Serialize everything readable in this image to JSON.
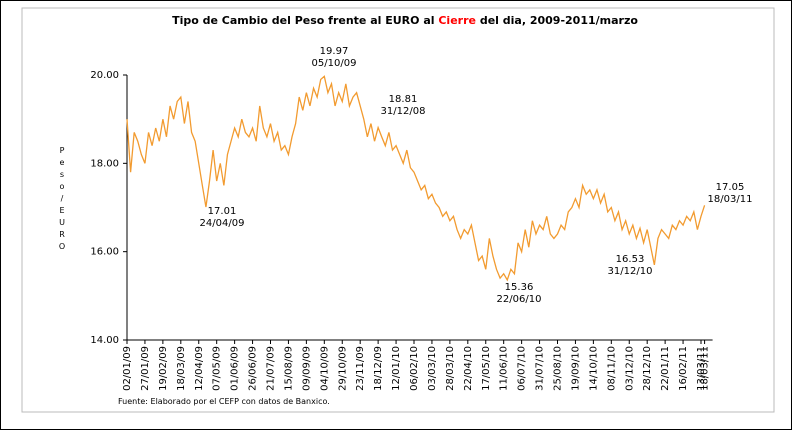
{
  "chart_data": {
    "type": "line",
    "title_parts": [
      "Tipo de Cambio del Peso frente al EURO al ",
      "Cierre",
      " del dia, 2009-2011/marzo"
    ],
    "title_colors": [
      "#000000",
      "#ff0000",
      "#000000"
    ],
    "ylabel": "Peso/EURO",
    "source": "Fuente: Elaborado por el CEFP con datos de Banxico.",
    "ylim": [
      14,
      20
    ],
    "yticks": [
      {
        "value": 14,
        "label": "14.00"
      },
      {
        "value": 16,
        "label": "16.00"
      },
      {
        "value": 18,
        "label": "18.00"
      },
      {
        "value": 20,
        "label": "20.00"
      }
    ],
    "categories": [
      "02/01/09",
      null,
      null,
      null,
      null,
      "27/01/09",
      null,
      null,
      null,
      null,
      "19/02/09",
      null,
      null,
      null,
      null,
      "18/03/09",
      null,
      null,
      null,
      null,
      "12/04/09",
      null,
      null,
      null,
      null,
      "07/05/09",
      null,
      null,
      null,
      null,
      "01/06/09",
      null,
      null,
      null,
      null,
      "26/06/09",
      null,
      null,
      null,
      null,
      "21/07/09",
      null,
      null,
      null,
      null,
      "15/08/09",
      null,
      null,
      null,
      null,
      "09/09/09",
      null,
      null,
      null,
      null,
      "04/10/09",
      null,
      null,
      null,
      null,
      "29/10/09",
      null,
      null,
      null,
      null,
      "23/11/09",
      null,
      null,
      null,
      null,
      "18/12/09",
      null,
      null,
      null,
      null,
      "12/01/10",
      null,
      null,
      null,
      null,
      "06/02/10",
      null,
      null,
      null,
      null,
      "03/03/10",
      null,
      null,
      null,
      null,
      "28/03/10",
      null,
      null,
      null,
      null,
      "22/04/10",
      null,
      null,
      null,
      null,
      "17/05/10",
      null,
      null,
      null,
      null,
      "11/06/10",
      null,
      null,
      null,
      null,
      "06/07/10",
      null,
      null,
      null,
      null,
      "31/07/10",
      null,
      null,
      null,
      null,
      "25/08/10",
      null,
      null,
      null,
      null,
      "19/09/10",
      null,
      null,
      null,
      null,
      "14/10/10",
      null,
      null,
      null,
      null,
      "08/11/10",
      null,
      null,
      null,
      null,
      "03/12/10",
      null,
      null,
      null,
      null,
      "28/12/10",
      null,
      null,
      null,
      null,
      "22/01/11",
      null,
      null,
      null,
      null,
      "16/02/11",
      null,
      null,
      null,
      null,
      "13/03/11",
      "18/03/11"
    ],
    "series": [
      {
        "name": "Peso/EURO",
        "color": "#f29b30",
        "values": [
          19.0,
          17.8,
          18.7,
          18.5,
          18.2,
          18.0,
          18.7,
          18.4,
          18.8,
          18.5,
          19.0,
          18.6,
          19.3,
          19.0,
          19.4,
          19.5,
          18.9,
          19.4,
          18.7,
          18.5,
          18.0,
          17.5,
          17.01,
          17.6,
          18.3,
          17.6,
          18.0,
          17.5,
          18.2,
          18.5,
          18.8,
          18.6,
          19.0,
          18.7,
          18.6,
          18.8,
          18.5,
          19.3,
          18.8,
          18.6,
          18.9,
          18.5,
          18.7,
          18.3,
          18.4,
          18.2,
          18.6,
          18.9,
          19.5,
          19.2,
          19.6,
          19.3,
          19.7,
          19.5,
          19.9,
          19.97,
          19.6,
          19.8,
          19.3,
          19.6,
          19.4,
          19.8,
          19.3,
          19.5,
          19.6,
          19.3,
          19.0,
          18.6,
          18.9,
          18.5,
          18.81,
          18.6,
          18.4,
          18.7,
          18.3,
          18.4,
          18.2,
          18.0,
          18.3,
          17.9,
          17.8,
          17.6,
          17.4,
          17.5,
          17.2,
          17.3,
          17.1,
          17.0,
          16.8,
          16.9,
          16.7,
          16.8,
          16.5,
          16.3,
          16.5,
          16.4,
          16.6,
          16.2,
          15.8,
          15.9,
          15.6,
          16.3,
          15.9,
          15.6,
          15.4,
          15.5,
          15.36,
          15.6,
          15.5,
          16.2,
          16.0,
          16.5,
          16.1,
          16.7,
          16.4,
          16.6,
          16.5,
          16.8,
          16.4,
          16.3,
          16.4,
          16.6,
          16.5,
          16.9,
          17.0,
          17.2,
          17.0,
          17.5,
          17.3,
          17.4,
          17.2,
          17.4,
          17.1,
          17.3,
          16.9,
          17.0,
          16.7,
          16.9,
          16.5,
          16.7,
          16.4,
          16.6,
          16.3,
          16.53,
          16.2,
          16.5,
          16.1,
          15.7,
          16.3,
          16.5,
          16.4,
          16.3,
          16.6,
          16.5,
          16.7,
          16.6,
          16.8,
          16.7,
          16.9,
          16.5,
          16.8,
          17.05
        ]
      }
    ],
    "annotations": [
      {
        "value": "19.97",
        "date": "05/10/09"
      },
      {
        "value": "18.81",
        "date": "31/12/08"
      },
      {
        "value": "17.01",
        "date": "24/04/09"
      },
      {
        "value": "15.36",
        "date": "22/06/10"
      },
      {
        "value": "16.53",
        "date": "31/12/10"
      },
      {
        "value": "17.05",
        "date": "18/03/11"
      }
    ]
  }
}
